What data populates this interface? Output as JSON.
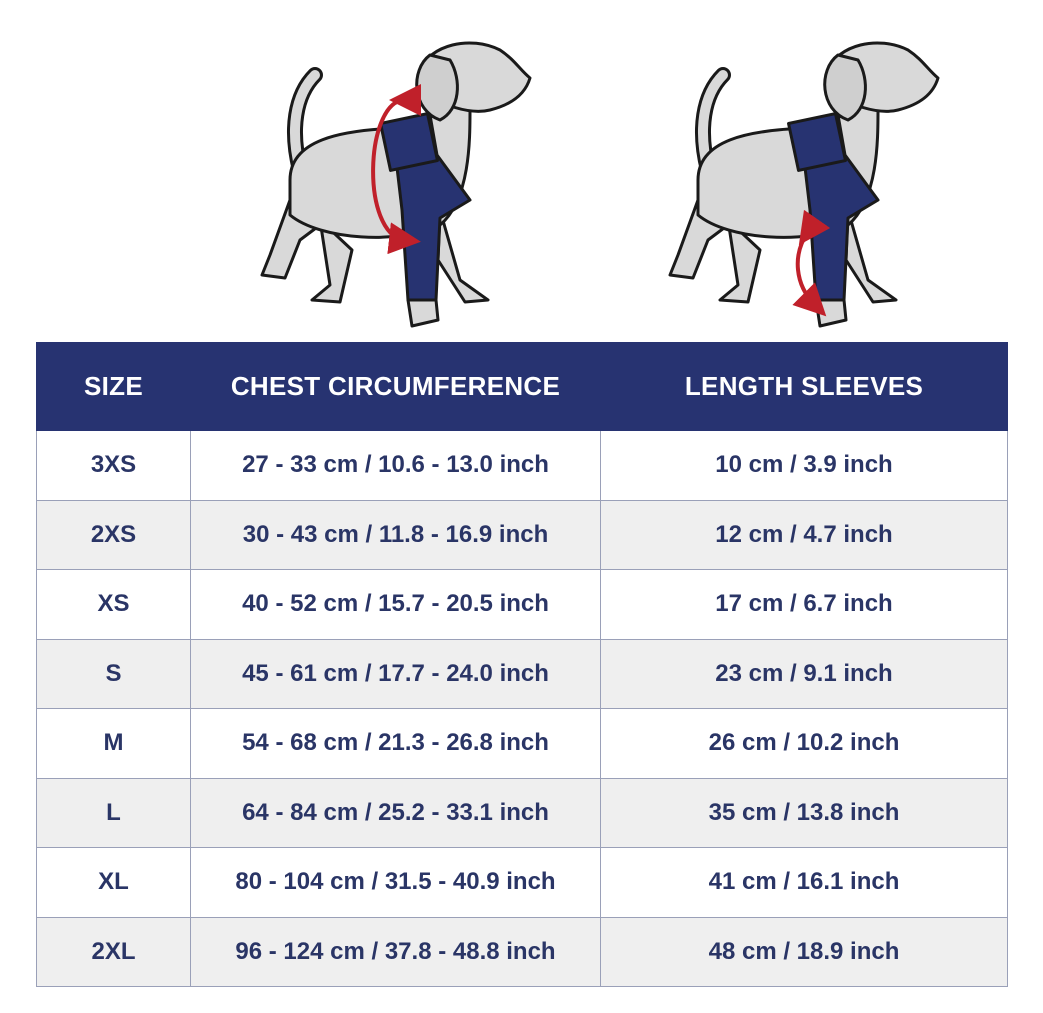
{
  "table": {
    "header": [
      "SIZE",
      "CHEST CIRCUMFERENCE",
      "LENGTH SLEEVES"
    ],
    "rows": [
      [
        "3XS",
        "27 - 33 cm / 10.6 - 13.0 inch",
        "10 cm / 3.9 inch"
      ],
      [
        "2XS",
        "30 - 43 cm / 11.8 - 16.9 inch",
        "12 cm / 4.7 inch"
      ],
      [
        "XS",
        "40 - 52 cm / 15.7 - 20.5 inch",
        "17 cm / 6.7 inch"
      ],
      [
        "S",
        "45 - 61 cm / 17.7 - 24.0 inch",
        "23 cm / 9.1 inch"
      ],
      [
        "M",
        "54 - 68 cm / 21.3 - 26.8 inch",
        "26 cm / 10.2 inch"
      ],
      [
        "L",
        "64 - 84 cm / 25.2 - 33.1 inch",
        "35 cm / 13.8 inch"
      ],
      [
        "XL",
        "80 - 104 cm / 31.5 - 40.9 inch",
        "41 cm / 16.1 inch"
      ],
      [
        "2XL",
        "96 - 124 cm / 37.8 - 48.8 inch",
        "48 cm / 18.9 inch"
      ]
    ]
  }
}
